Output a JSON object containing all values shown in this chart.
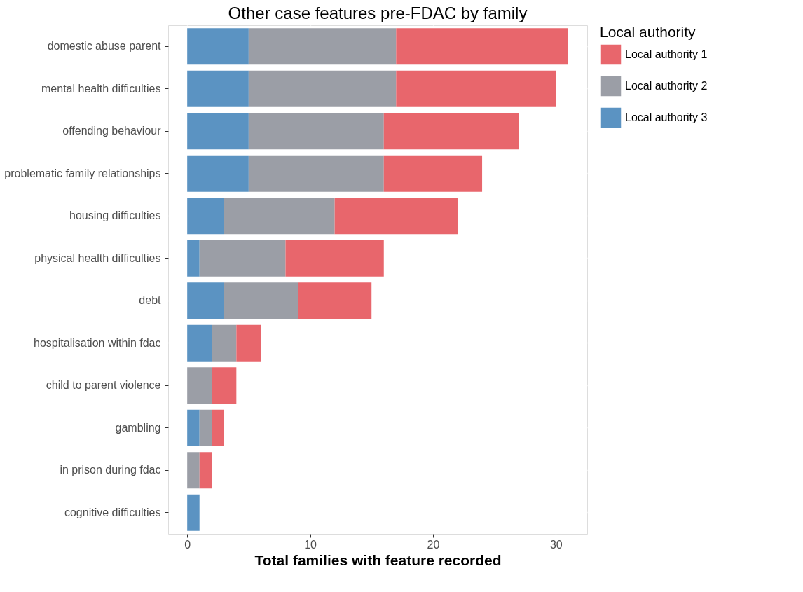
{
  "chart_data": {
    "type": "bar",
    "orientation": "horizontal",
    "stacked": true,
    "title": "Other case features pre-FDAC by family",
    "xlabel": "Total families with feature recorded",
    "legend_title": "Local authority",
    "legend": "right",
    "grid": true,
    "categories": [
      "domestic abuse parent",
      "mental health difficulties",
      "offending behaviour",
      "problematic family relationships",
      "housing difficulties",
      "physical health difficulties",
      "debt",
      "hospitalisation within fdac",
      "child to parent violence",
      "gambling",
      "in prison during fdac",
      "cognitive difficulties"
    ],
    "series": [
      {
        "name": "Local authority 3",
        "color": "#5b93c2",
        "values": [
          5,
          5,
          5,
          5,
          3,
          1,
          3,
          2,
          0,
          1,
          0,
          1
        ]
      },
      {
        "name": "Local authority 2",
        "color": "#9b9ea6",
        "values": [
          12,
          12,
          11,
          11,
          9,
          7,
          6,
          2,
          2,
          1,
          1,
          0
        ]
      },
      {
        "name": "Local authority 1",
        "color": "#e8666c",
        "values": [
          14,
          13,
          11,
          8,
          10,
          8,
          6,
          2,
          2,
          1,
          1,
          0
        ]
      }
    ],
    "xlim": [
      -1.55,
      32.55
    ],
    "xticks": [
      0,
      10,
      20,
      30
    ]
  }
}
